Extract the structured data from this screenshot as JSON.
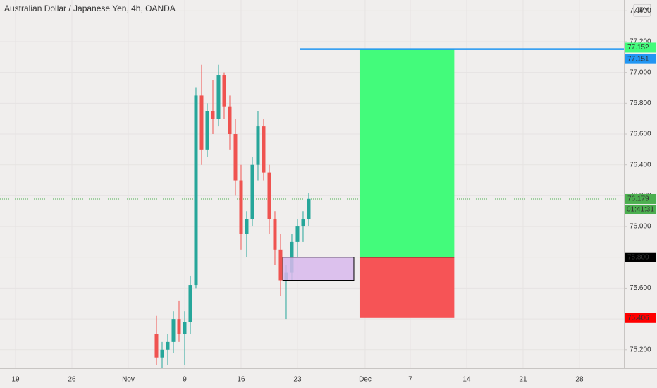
{
  "chart_data": {
    "type": "candlestick",
    "title": "Australian Dollar / Japanese Yen, 4h, OANDA",
    "currency": "JPY",
    "x": [
      12.5,
      13,
      13.5,
      14,
      14.5,
      15,
      15.5,
      16,
      16.5,
      17,
      17.5,
      18,
      18.5,
      19,
      19.5,
      20,
      20.5,
      21,
      21.5,
      22,
      22.5,
      23,
      23.5,
      24,
      24.5,
      25,
      25.5,
      26
    ],
    "open": [
      75.3,
      75.15,
      75.2,
      75.25,
      75.4,
      75.3,
      75.38,
      75.62,
      76.85,
      76.5,
      76.75,
      76.7,
      76.98,
      76.78,
      76.6,
      76.3,
      75.95,
      76.05,
      76.4,
      76.65,
      76.35,
      76.05,
      75.85,
      75.65,
      75.7,
      75.9,
      76.0,
      76.05
    ],
    "high": [
      75.42,
      75.25,
      75.3,
      75.45,
      75.52,
      75.45,
      75.68,
      76.9,
      77.05,
      76.8,
      76.95,
      77.05,
      77.0,
      76.85,
      76.7,
      76.4,
      76.1,
      76.45,
      76.75,
      76.7,
      76.4,
      76.1,
      75.95,
      75.75,
      75.95,
      76.05,
      76.1,
      76.22
    ],
    "low": [
      75.1,
      75.08,
      75.1,
      75.18,
      75.25,
      75.1,
      75.3,
      75.6,
      76.4,
      76.45,
      76.6,
      76.65,
      76.7,
      76.5,
      76.2,
      75.85,
      75.8,
      76.0,
      76.3,
      76.3,
      75.95,
      75.75,
      75.55,
      75.4,
      75.65,
      75.8,
      75.9,
      76.0
    ],
    "close": [
      75.15,
      75.2,
      75.25,
      75.4,
      75.3,
      75.38,
      75.62,
      76.85,
      76.5,
      76.75,
      76.7,
      76.98,
      76.78,
      76.6,
      76.3,
      75.95,
      76.05,
      76.4,
      76.65,
      76.35,
      76.05,
      75.85,
      75.65,
      75.7,
      75.9,
      76.0,
      76.05,
      76.18
    ],
    "up_color": "#26a69a",
    "down_color": "#ef5350",
    "xlim": [
      -1.375,
      53.94
    ],
    "ylim": [
      75.08,
      77.47
    ],
    "grid": true,
    "xticks": [
      {
        "value": 0,
        "label": "19"
      },
      {
        "value": 5,
        "label": "26"
      },
      {
        "value": 10,
        "label": "Nov"
      },
      {
        "value": 15,
        "label": "9"
      },
      {
        "value": 20,
        "label": "16"
      },
      {
        "value": 25,
        "label": "23"
      },
      {
        "value": 31,
        "label": "Dec"
      },
      {
        "value": 35,
        "label": "7"
      },
      {
        "value": 40,
        "label": "14"
      },
      {
        "value": 45,
        "label": "21"
      },
      {
        "value": 50,
        "label": "28"
      }
    ],
    "yticks": [
      {
        "value": 75.2,
        "label": "75.200"
      },
      {
        "value": 75.4,
        "label": "75.400"
      },
      {
        "value": 75.6,
        "label": "75.600"
      },
      {
        "value": 75.8,
        "label": "75.800"
      },
      {
        "value": 76.0,
        "label": "76.000"
      },
      {
        "value": 76.2,
        "label": "76.200"
      },
      {
        "value": 76.4,
        "label": "76.400"
      },
      {
        "value": 76.6,
        "label": "76.600"
      },
      {
        "value": 76.8,
        "label": "76.800"
      },
      {
        "value": 77.0,
        "label": "77.000"
      },
      {
        "value": 77.2,
        "label": "77.200"
      },
      {
        "value": 77.4,
        "label": "77.400"
      }
    ],
    "position": {
      "x_start": 30.5,
      "x_end": 38.9,
      "target": {
        "value": 77.152,
        "label": "77.152"
      },
      "entry": {
        "value": 75.8,
        "label": "75.800"
      },
      "stop": {
        "value": 75.406,
        "label": "75.406"
      },
      "target_color": "#43fb7b",
      "stop_color": "#f65456"
    },
    "zone": {
      "x_start": 23.7,
      "x_end": 30,
      "top": 75.8,
      "bottom": 75.65,
      "color": "#d8b8ec"
    },
    "level_line": {
      "value": 77.151,
      "label": "77.151",
      "x_start": 25.2,
      "color": "#2196f3"
    },
    "last_price": {
      "value": 76.179,
      "label": "76.179",
      "countdown": "01:41:31",
      "color": "#4caf50"
    }
  }
}
